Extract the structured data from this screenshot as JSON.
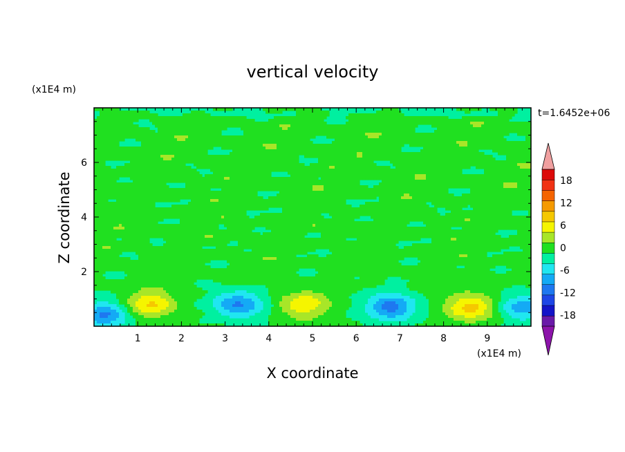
{
  "chart_data": {
    "type": "heatmap",
    "title": "vertical velocity",
    "xlabel": "X coordinate",
    "ylabel": "Z coordinate",
    "x_unit": "(x1E4 m)",
    "y_unit": "(x1E4 m)",
    "time_label": "t=1.6452e+06",
    "xlim": [
      0,
      10
    ],
    "ylim": [
      0,
      8
    ],
    "x_ticks": [
      1,
      2,
      3,
      4,
      5,
      6,
      7,
      8,
      9
    ],
    "y_ticks": [
      2,
      4,
      6
    ],
    "colorbar": {
      "levels": [
        -21,
        -18,
        -15,
        -12,
        -9,
        -6,
        -3,
        0,
        3,
        6,
        9,
        12,
        15,
        18,
        21
      ],
      "labels": [
        "18",
        "12",
        "6",
        "0",
        "-6",
        "-12",
        "-18"
      ],
      "label_values": [
        18,
        12,
        6,
        0,
        -6,
        -12,
        -18
      ],
      "colors": [
        "#6a1aa8",
        "#1414c8",
        "#1e46e6",
        "#1e78f0",
        "#14aaf5",
        "#20e6f0",
        "#00f0a0",
        "#20e020",
        "#a8e628",
        "#f5f500",
        "#f5c800",
        "#f59a00",
        "#f56400",
        "#f03214",
        "#dc0a0a"
      ],
      "over_color": "#f0a0a0",
      "under_color": "#8c14aa"
    },
    "cells": [
      {
        "x": 0.25,
        "z": 0.4,
        "value": -10
      },
      {
        "x": 1.3,
        "z": 0.8,
        "value": 9
      },
      {
        "x": 3.3,
        "z": 0.8,
        "value": -10
      },
      {
        "x": 4.8,
        "z": 0.8,
        "value": 8
      },
      {
        "x": 6.8,
        "z": 0.7,
        "value": -11
      },
      {
        "x": 8.6,
        "z": 0.7,
        "value": 10
      },
      {
        "x": 9.8,
        "z": 0.7,
        "value": -8
      },
      {
        "x": 5.0,
        "z": 4.0,
        "value": 1
      }
    ]
  }
}
